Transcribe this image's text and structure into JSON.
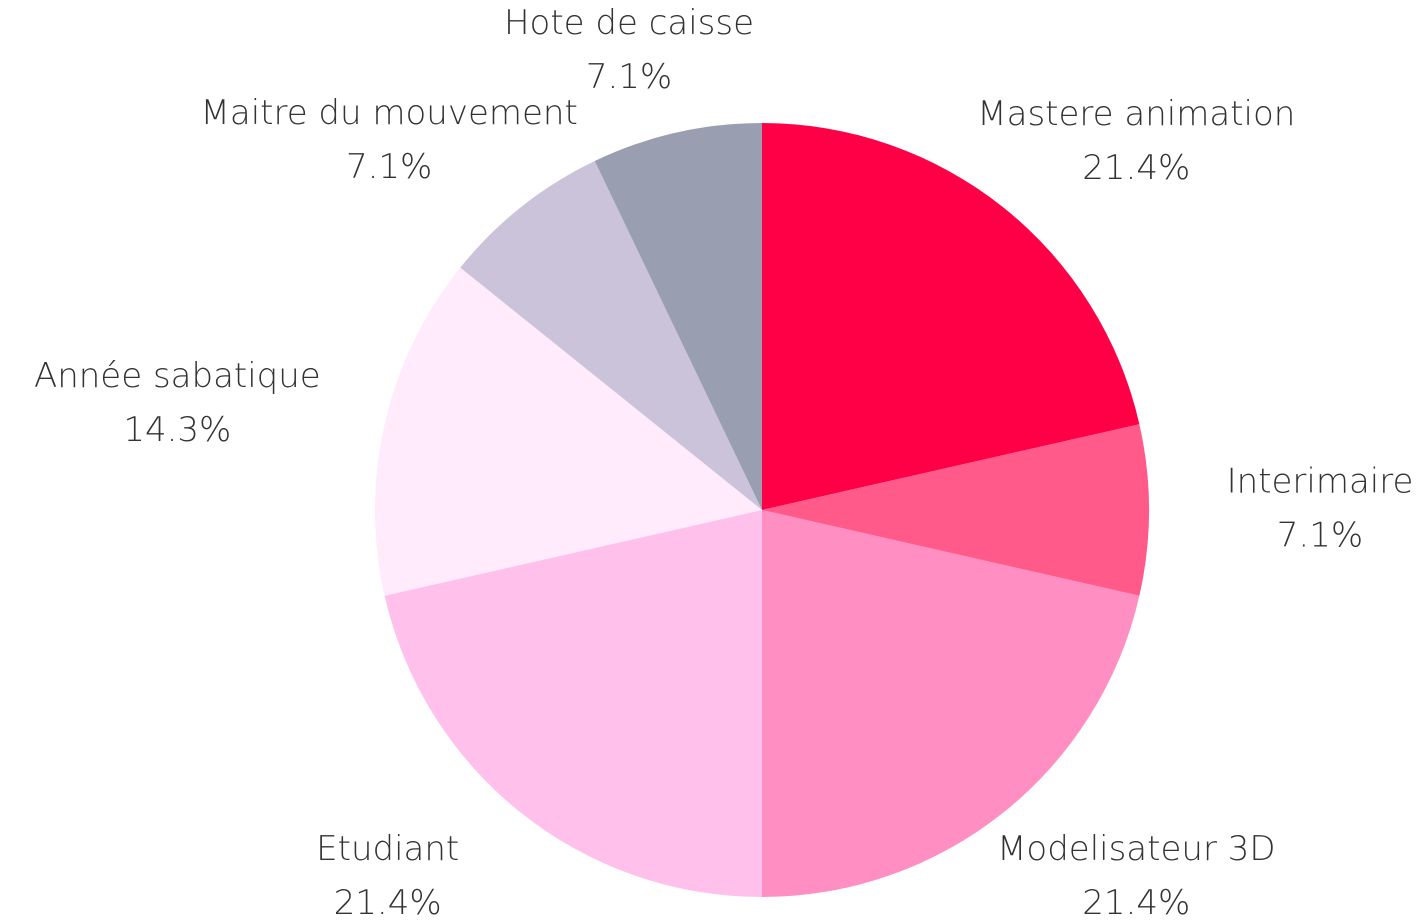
{
  "chart_data": {
    "type": "pie",
    "categories": [
      "Mastere animation",
      "Interimaire",
      "Modelisateur 3D",
      "Etudiant",
      "Année sabatique",
      "Maitre du mouvement",
      "Hote de caisse"
    ],
    "values": [
      21.4,
      7.1,
      21.4,
      21.4,
      14.3,
      7.1,
      7.1
    ],
    "value_labels": [
      "21.4%",
      "7.1%",
      "21.4%",
      "21.4%",
      "14.3%",
      "7.1%",
      "7.1%"
    ],
    "colors": [
      "#ff0047",
      "#ff5a8a",
      "#ff8fc2",
      "#ffc0ec",
      "#ffebfb",
      "#cbc3da",
      "#9a9eb1"
    ]
  }
}
